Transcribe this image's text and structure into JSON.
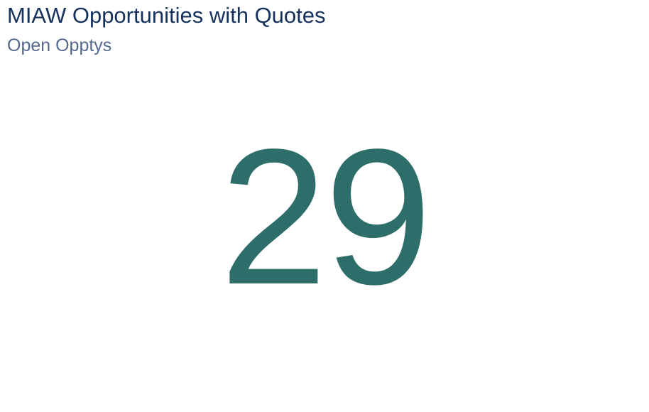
{
  "widget": {
    "title": "MIAW Opportunities with Quotes",
    "subtitle": "Open Opptys",
    "value": "29"
  },
  "colors": {
    "title": "#16325c",
    "subtitle": "#54698d",
    "metric": "#2e6e6a",
    "background": "#ffffff"
  }
}
